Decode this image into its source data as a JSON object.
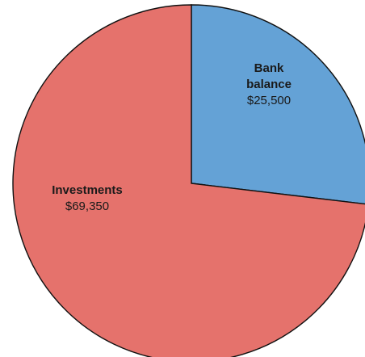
{
  "chart_data": {
    "type": "pie",
    "slices": [
      {
        "label_lines": [
          "Bank",
          "balance"
        ],
        "value": 25500,
        "value_label": "$25,500",
        "color": "#64A2D6"
      },
      {
        "label_lines": [
          "Investments"
        ],
        "value": 69350,
        "value_label": "$69,350",
        "color": "#E5726C"
      }
    ],
    "start_angle": "12 o'clock",
    "direction": "clockwise",
    "border_color": "#111111"
  }
}
